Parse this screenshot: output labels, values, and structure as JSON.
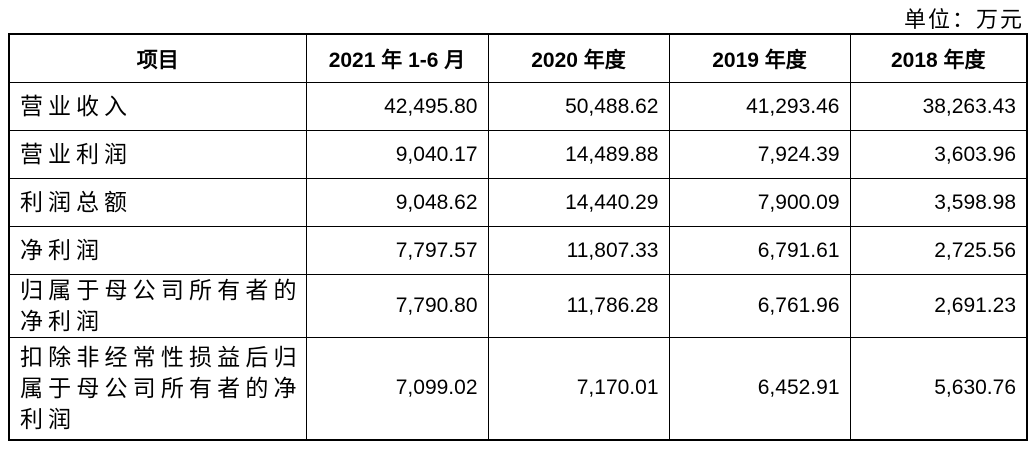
{
  "header": {
    "unit": "单位：万元"
  },
  "table": {
    "columns": [
      "项目",
      "2021 年 1-6 月",
      "2020 年度",
      "2019 年度",
      "2018 年度"
    ],
    "rows": [
      [
        "营业收入",
        "42,495.80",
        "50,488.62",
        "41,293.46",
        "38,263.43"
      ],
      [
        "营业利润",
        "9,040.17",
        "14,489.88",
        "7,924.39",
        "3,603.96"
      ],
      [
        "利润总额",
        "9,048.62",
        "14,440.29",
        "7,900.09",
        "3,598.98"
      ],
      [
        "净利润",
        "7,797.57",
        "11,807.33",
        "6,791.61",
        "2,725.56"
      ],
      [
        "归属于母公司所有者的净利润",
        "7,790.80",
        "11,786.28",
        "6,761.96",
        "2,691.23"
      ],
      [
        "扣除非经常性损益后归属于母公司所有者的净利润",
        "7,099.02",
        "7,170.01",
        "6,452.91",
        "5,630.76"
      ]
    ]
  }
}
